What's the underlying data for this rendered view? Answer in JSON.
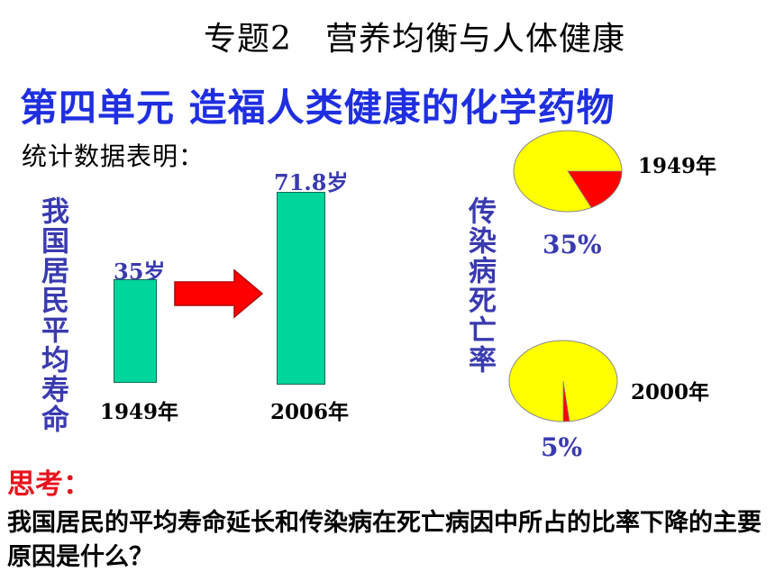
{
  "slide": {
    "topic_title": "专题2　营养均衡与人体健康",
    "unit_title": "第四单元 造福人类健康的化学药物",
    "stats_intro": "统计数据表明：",
    "think_label": "思考：",
    "question": "我国居民的平均寿命延长和传染病在死亡病因中所占的比率下降的主要原因是什么？"
  },
  "life_expectancy": {
    "label": "我国居民平均寿命",
    "bars": [
      {
        "year": "1949年",
        "value_label": "35岁",
        "value": 35
      },
      {
        "year": "2006年",
        "value_label": "71.8岁",
        "value": 71.8
      }
    ],
    "bar_color": "#00d59b",
    "arrow_color": "#ff0000"
  },
  "infectious_death_rate": {
    "label": "传染病死亡率",
    "pies": [
      {
        "year": "1949年",
        "percent_label": "35%",
        "percent": 35
      },
      {
        "year": "2000年",
        "percent_label": "5%",
        "percent": 5
      }
    ],
    "pie_colors": {
      "base": "#ffff00",
      "slice": "#ff0000"
    }
  }
}
